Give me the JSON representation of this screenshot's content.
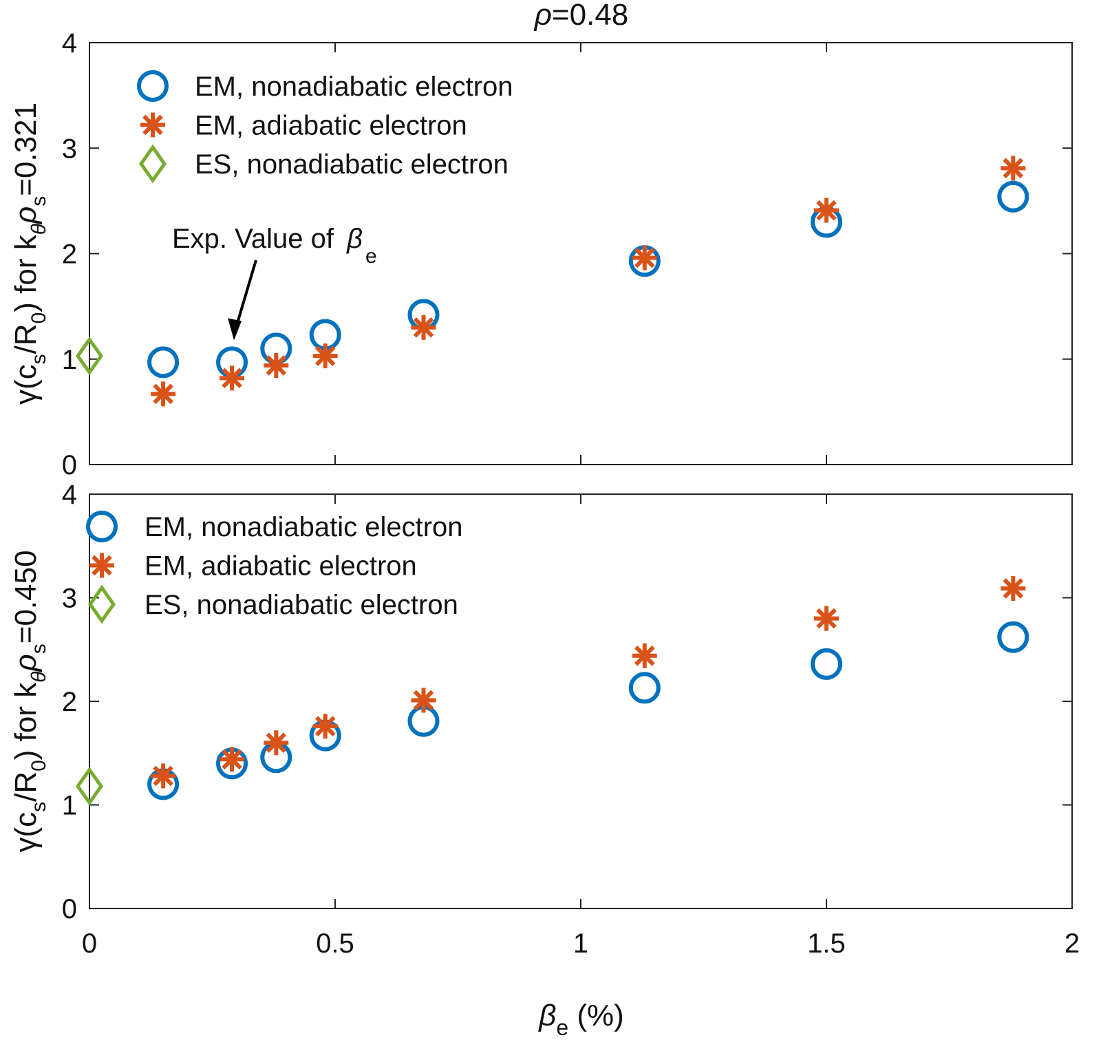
{
  "chart_data": {
    "type": "scatter",
    "title": "ρ=0.48",
    "title_parts": {
      "sym": "ρ",
      "rest": "=0.48"
    },
    "xlabel": {
      "sym": "β",
      "sub": "e",
      "rest": " (%)"
    },
    "xlim": [
      0,
      2
    ],
    "xticks": [
      "0",
      "0.5",
      "1",
      "1.5",
      "2"
    ],
    "xtick_values": [
      0,
      0.5,
      1,
      1.5,
      2
    ],
    "colors": {
      "em_nonadiabatic": "#0072BD",
      "em_adiabatic": "#D95319",
      "es_nonadiabatic": "#77AC30"
    },
    "legend_labels": [
      "EM, nonadiabatic electron",
      "EM, adiabatic electron",
      "ES, nonadiabatic electron"
    ],
    "panels": [
      {
        "ylabel": {
          "a": "γ(c",
          "s1": "s",
          "b": "/R",
          "s2": "0",
          "c": ") for k",
          "s3": "θ",
          "d": "ρ",
          "s4": "s",
          "e": "=0.321"
        },
        "ylim": [
          0,
          4
        ],
        "yticks": [
          "0",
          "1",
          "2",
          "3",
          "4"
        ],
        "legend_position": "top-left",
        "annotation": {
          "text": "Exp. Value of ",
          "sym": "β",
          "sub": "e",
          "points_to": [
            0.29,
            0.97
          ]
        },
        "series": [
          {
            "name": "EM, nonadiabatic electron",
            "marker": "circle",
            "x": [
              0.15,
              0.29,
              0.38,
              0.48,
              0.68,
              1.13,
              1.5,
              1.88
            ],
            "y": [
              0.97,
              0.97,
              1.1,
              1.23,
              1.42,
              1.93,
              2.3,
              2.54
            ]
          },
          {
            "name": "EM, adiabatic electron",
            "marker": "star",
            "x": [
              0.15,
              0.29,
              0.38,
              0.48,
              0.68,
              1.13,
              1.5,
              1.88
            ],
            "y": [
              0.67,
              0.82,
              0.94,
              1.03,
              1.3,
              1.96,
              2.41,
              2.81
            ]
          },
          {
            "name": "ES, nonadiabatic electron",
            "marker": "diamond",
            "x": [
              0
            ],
            "y": [
              1.03
            ]
          }
        ]
      },
      {
        "ylabel": {
          "a": "γ(c",
          "s1": "s",
          "b": "/R",
          "s2": "0",
          "c": ") for k",
          "s3": "θ",
          "d": "ρ",
          "s4": "s",
          "e": "=0.450"
        },
        "ylim": [
          0,
          4
        ],
        "yticks": [
          "0",
          "1",
          "2",
          "3",
          "4"
        ],
        "legend_position": "top-left",
        "series": [
          {
            "name": "EM, nonadiabatic electron",
            "marker": "circle",
            "x": [
              0.15,
              0.29,
              0.38,
              0.48,
              0.68,
              1.13,
              1.5,
              1.88
            ],
            "y": [
              1.2,
              1.4,
              1.46,
              1.67,
              1.81,
              2.13,
              2.36,
              2.62
            ]
          },
          {
            "name": "EM, adiabatic electron",
            "marker": "star",
            "x": [
              0.15,
              0.29,
              0.38,
              0.48,
              0.68,
              1.13,
              1.5,
              1.88
            ],
            "y": [
              1.28,
              1.44,
              1.6,
              1.76,
              2.01,
              2.44,
              2.8,
              3.09
            ]
          },
          {
            "name": "ES, nonadiabatic electron",
            "marker": "diamond",
            "x": [
              0
            ],
            "y": [
              1.18
            ]
          }
        ]
      }
    ]
  }
}
